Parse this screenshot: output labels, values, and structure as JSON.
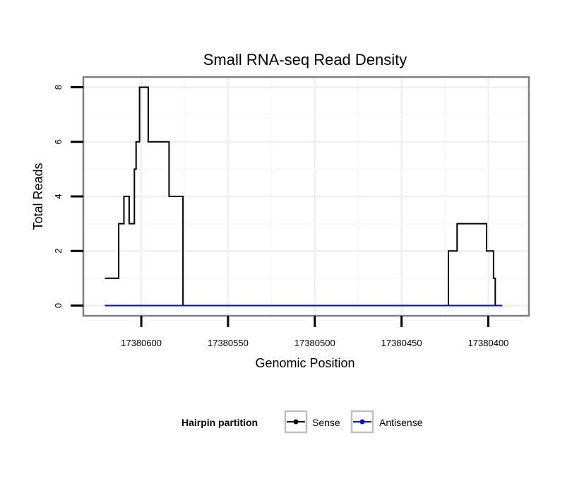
{
  "chart_data": {
    "type": "line",
    "title": "Small RNA-seq Read Density",
    "xlabel": "Genomic Position",
    "ylabel": "Total Reads",
    "x_reversed": true,
    "xlim": [
      17380633,
      17380377
    ],
    "ylim": [
      -0.35,
      8.35
    ],
    "x_ticks": [
      17380600,
      17380550,
      17380500,
      17380450,
      17380400
    ],
    "x_tick_labels": [
      "17380600",
      "17380550",
      "17380500",
      "17380450",
      "17380400"
    ],
    "y_ticks": [
      0,
      2,
      4,
      6,
      8
    ],
    "y_tick_labels": [
      "0",
      "2",
      "4",
      "6",
      "8"
    ],
    "grid": true,
    "legend": {
      "position": "bottom",
      "title": "Hairpin partition",
      "entries": [
        "Sense",
        "Antisense"
      ]
    },
    "series": [
      {
        "name": "Sense",
        "color": "#000000",
        "x": [
          17380621,
          17380613,
          17380613,
          17380610,
          17380610,
          17380607,
          17380607,
          17380604,
          17380604,
          17380604,
          17380603,
          17380603,
          17380601,
          17380601,
          17380599,
          17380599,
          17380596,
          17380596,
          17380592,
          17380592,
          17380584,
          17380584,
          17380576,
          17380576,
          17380423,
          17380423,
          17380418,
          17380418,
          17380401,
          17380401,
          17380397,
          17380397,
          17380396,
          17380396,
          17380392
        ],
        "y": [
          1,
          1,
          3,
          3,
          4,
          4,
          3,
          3,
          5,
          5,
          5,
          6,
          6,
          8,
          8,
          8,
          8,
          6,
          6,
          6,
          6,
          4,
          4,
          0,
          0,
          2,
          2,
          3,
          3,
          2,
          2,
          1,
          1,
          0,
          0
        ]
      },
      {
        "name": "Antisense",
        "color": "#0000ff",
        "x": [
          17380621,
          17380392
        ],
        "y": [
          0,
          0
        ]
      }
    ]
  }
}
